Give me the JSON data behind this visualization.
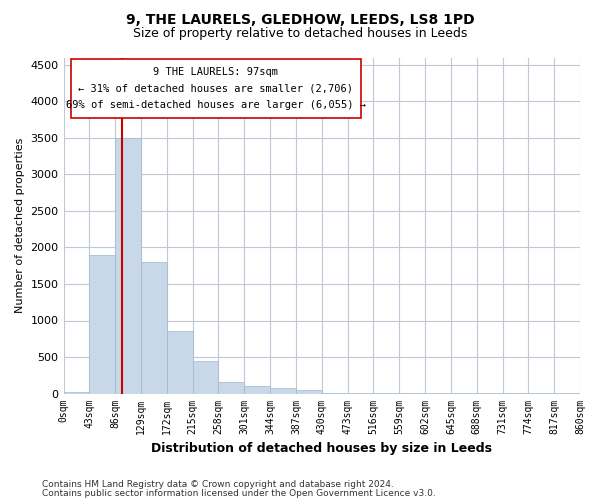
{
  "title": "9, THE LAURELS, GLEDHOW, LEEDS, LS8 1PD",
  "subtitle": "Size of property relative to detached houses in Leeds",
  "xlabel": "Distribution of detached houses by size in Leeds",
  "ylabel": "Number of detached properties",
  "bar_color": "#c8d8e8",
  "bar_edge_color": "#a0b8cc",
  "grid_color": "#c0c8d8",
  "annotation_box_color": "#cc0000",
  "property_line_color": "#cc0000",
  "property_sqm": 97,
  "annotation_text_line1": "9 THE LAURELS: 97sqm",
  "annotation_text_line2": "← 31% of detached houses are smaller (2,706)",
  "annotation_text_line3": "69% of semi-detached houses are larger (6,055) →",
  "footnote1": "Contains HM Land Registry data © Crown copyright and database right 2024.",
  "footnote2": "Contains public sector information licensed under the Open Government Licence v3.0.",
  "bin_edges": [
    0,
    43,
    86,
    129,
    172,
    215,
    258,
    301,
    344,
    387,
    430,
    473,
    516,
    559,
    602,
    645,
    688,
    731,
    774,
    817,
    860
  ],
  "bin_labels": [
    "0sqm",
    "43sqm",
    "86sqm",
    "129sqm",
    "172sqm",
    "215sqm",
    "258sqm",
    "301sqm",
    "344sqm",
    "387sqm",
    "430sqm",
    "473sqm",
    "516sqm",
    "559sqm",
    "602sqm",
    "645sqm",
    "688sqm",
    "731sqm",
    "774sqm",
    "817sqm",
    "860sqm"
  ],
  "bar_heights": [
    25,
    1900,
    3500,
    1800,
    850,
    450,
    160,
    100,
    70,
    55,
    10,
    10,
    8,
    5,
    5,
    4,
    3,
    3,
    2,
    2
  ],
  "ylim": [
    0,
    4600
  ],
  "yticks": [
    0,
    500,
    1000,
    1500,
    2000,
    2500,
    3000,
    3500,
    4000,
    4500
  ],
  "figsize": [
    6.0,
    5.0
  ],
  "dpi": 100,
  "background_color": "#ffffff"
}
